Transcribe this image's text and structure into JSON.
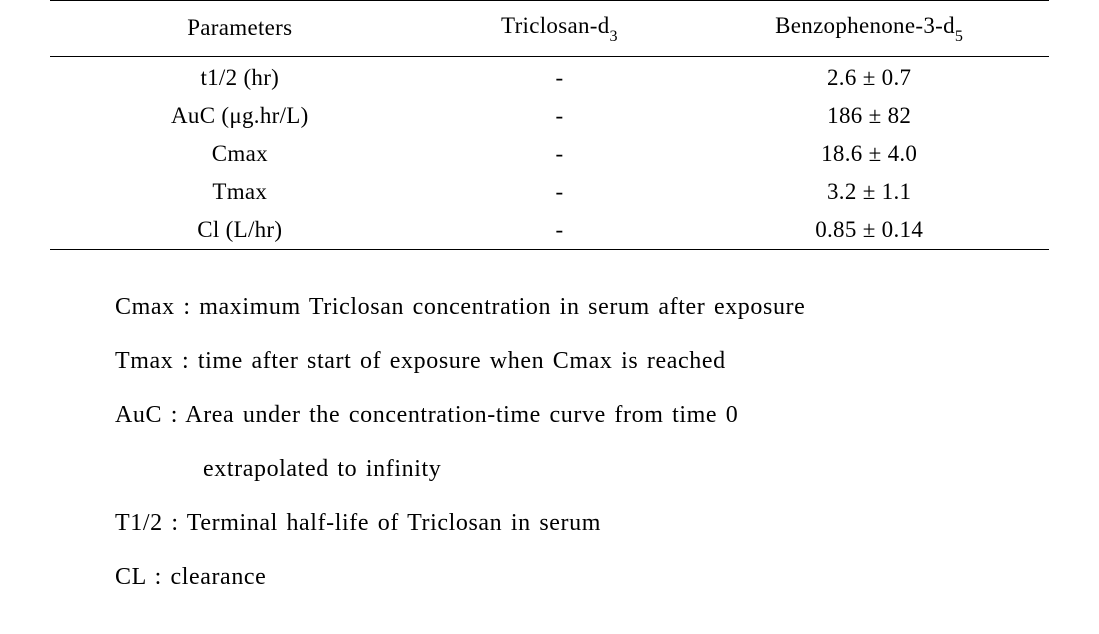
{
  "table": {
    "headers": {
      "parameters": "Parameters",
      "triclosan_prefix": "Triclosan-d",
      "triclosan_sub": "3",
      "benzo_prefix": "Benzophenone-3-d",
      "benzo_sub": "5"
    },
    "rows": [
      {
        "param": "t1/2 (hr)",
        "tric": "-",
        "benz": "2.6 ± 0.7"
      },
      {
        "param_pre": "AuC (",
        "param_post": "g.hr/L)",
        "mu": "μ",
        "tric": "-",
        "benz": "186 ± 82"
      },
      {
        "param": "Cmax",
        "tric": "-",
        "benz": "18.6 ± 4.0"
      },
      {
        "param": "Tmax",
        "tric": "-",
        "benz": "3.2 ± 1.1"
      },
      {
        "param": "Cl (L/hr)",
        "tric": "-",
        "benz": "0.85 ± 0.14"
      }
    ]
  },
  "notes": {
    "line1": "Cmax : maximum Triclosan concentration in serum after exposure",
    "line2": "Tmax : time after start of exposure when Cmax is reached",
    "line3": "AuC : Area under the concentration-time curve from time 0",
    "line3b": "extrapolated to infinity",
    "line4": "T1/2 : Terminal half-life of Triclosan in serum",
    "line5": "CL : clearance"
  }
}
